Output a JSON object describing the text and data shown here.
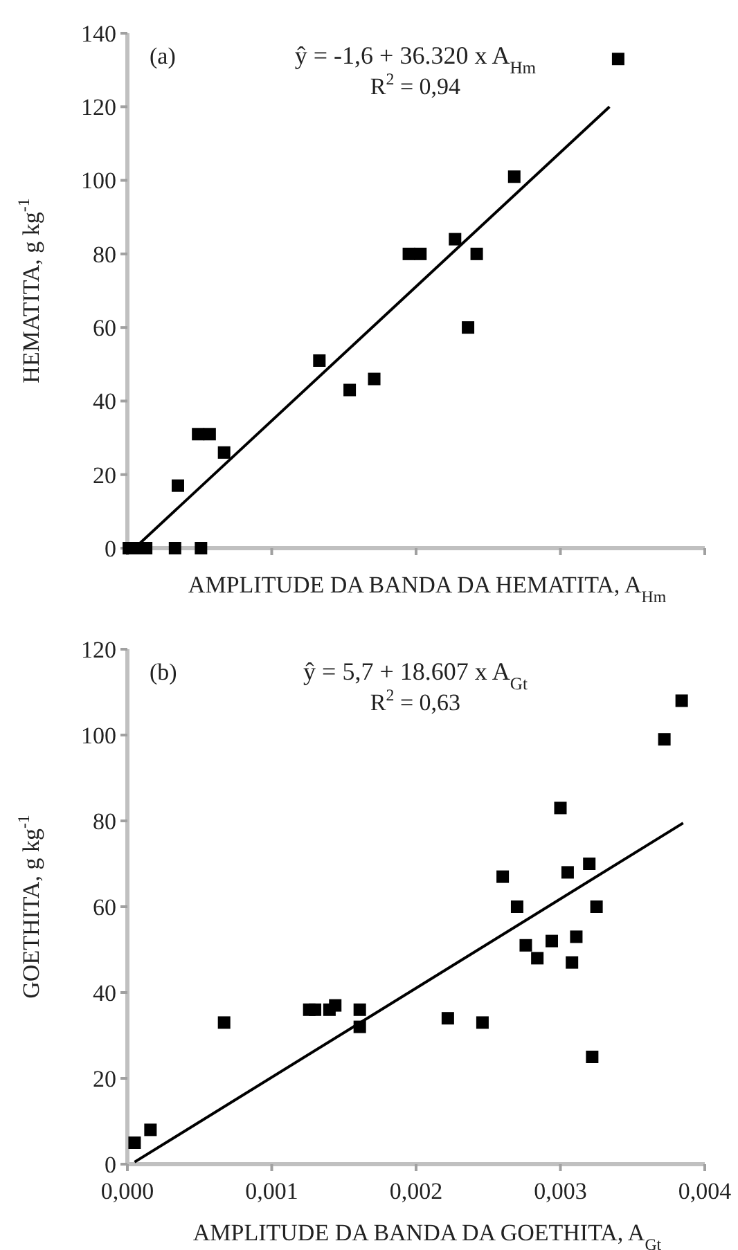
{
  "chart_data": [
    {
      "type": "scatter",
      "xlabel": "AMPLITUDE DA BANDA DA HEMATITA, A$_{Hm}$",
      "ylabel": "HEMATITA, g kg$^{-1}$",
      "annotations": [
        "(a)",
        "ŷ = -1,6 + 36.320 x A$_{Hm}$",
        "R$^{2}$ = 0,94"
      ],
      "xlim": [
        0,
        0.004
      ],
      "xticks": [
        {
          "value": 0,
          "label": null
        },
        {
          "value": 0.001,
          "label": null
        },
        {
          "value": 0.002,
          "label": null
        },
        {
          "value": 0.003,
          "label": null
        },
        {
          "value": 0.004,
          "label": null
        }
      ],
      "ylim": [
        0,
        140
      ],
      "yticks": [
        0,
        20,
        40,
        60,
        80,
        100,
        120,
        140
      ],
      "tick_labels": "y",
      "marker": "square",
      "series": [
        {
          "color": "#000000",
          "x": [
            0.0034,
            0.00268,
            0.00195,
            0.00203,
            0.00227,
            0.00242,
            0.00236,
            0.00133,
            0.00154,
            0.00171,
            0.00049,
            0.00057,
            0.00067,
            0.00035,
            1e-05,
            6e-05,
            0.00013,
            0.00033,
            0.00051
          ],
          "values": [
            133,
            101,
            80,
            80,
            84,
            80,
            60,
            51,
            43,
            46,
            31,
            31,
            26,
            17,
            0,
            0,
            0,
            0,
            0
          ]
        },
        {
          "type": "line",
          "marker": "none",
          "color": "#000000",
          "x": [
            5e-05,
            0.00334
          ],
          "values": [
            0,
            120
          ]
        }
      ]
    },
    {
      "type": "scatter",
      "xlabel": "AMPLITUDE DA BANDA DA GOETHITA, A$_{Gt}$",
      "ylabel": "GOETHITA, g kg$^{-1}$",
      "annotations": [
        "(b)",
        "ŷ = 5,7 + 18.607 x A$_{Gt}$",
        "R$^{2}$ = 0,63"
      ],
      "xlim": [
        0,
        0.004
      ],
      "xticks": [
        {
          "value": 0,
          "label": "0,000"
        },
        {
          "value": 0.001,
          "label": "0,001"
        },
        {
          "value": 0.002,
          "label": "0,002"
        },
        {
          "value": 0.003,
          "label": "0,003"
        },
        {
          "value": 0.004,
          "label": "0,004"
        }
      ],
      "ylim": [
        0,
        120
      ],
      "yticks": [
        0,
        20,
        40,
        60,
        80,
        100,
        120
      ],
      "marker": "square",
      "series": [
        {
          "color": "#000000",
          "x": [
            0.00384,
            0.00372,
            0.003,
            0.0026,
            0.00305,
            0.0032,
            0.0027,
            0.00325,
            0.00276,
            0.00294,
            0.00311,
            0.00284,
            0.00308,
            0.00322,
            0.00067,
            0.00126,
            0.0013,
            0.0014,
            0.00144,
            0.00161,
            0.00161,
            0.00222,
            0.00246,
            5e-05,
            0.00016
          ],
          "values": [
            108,
            99,
            83,
            67,
            68,
            70,
            60,
            60,
            51,
            52,
            53,
            48,
            47,
            25,
            33,
            36,
            36,
            36,
            37,
            36,
            32,
            34,
            33,
            5,
            8
          ]
        },
        {
          "type": "line",
          "marker": "none",
          "color": "#000000",
          "x": [
            5e-05,
            0.00385
          ],
          "values": [
            0.5,
            79.5
          ]
        }
      ]
    }
  ]
}
